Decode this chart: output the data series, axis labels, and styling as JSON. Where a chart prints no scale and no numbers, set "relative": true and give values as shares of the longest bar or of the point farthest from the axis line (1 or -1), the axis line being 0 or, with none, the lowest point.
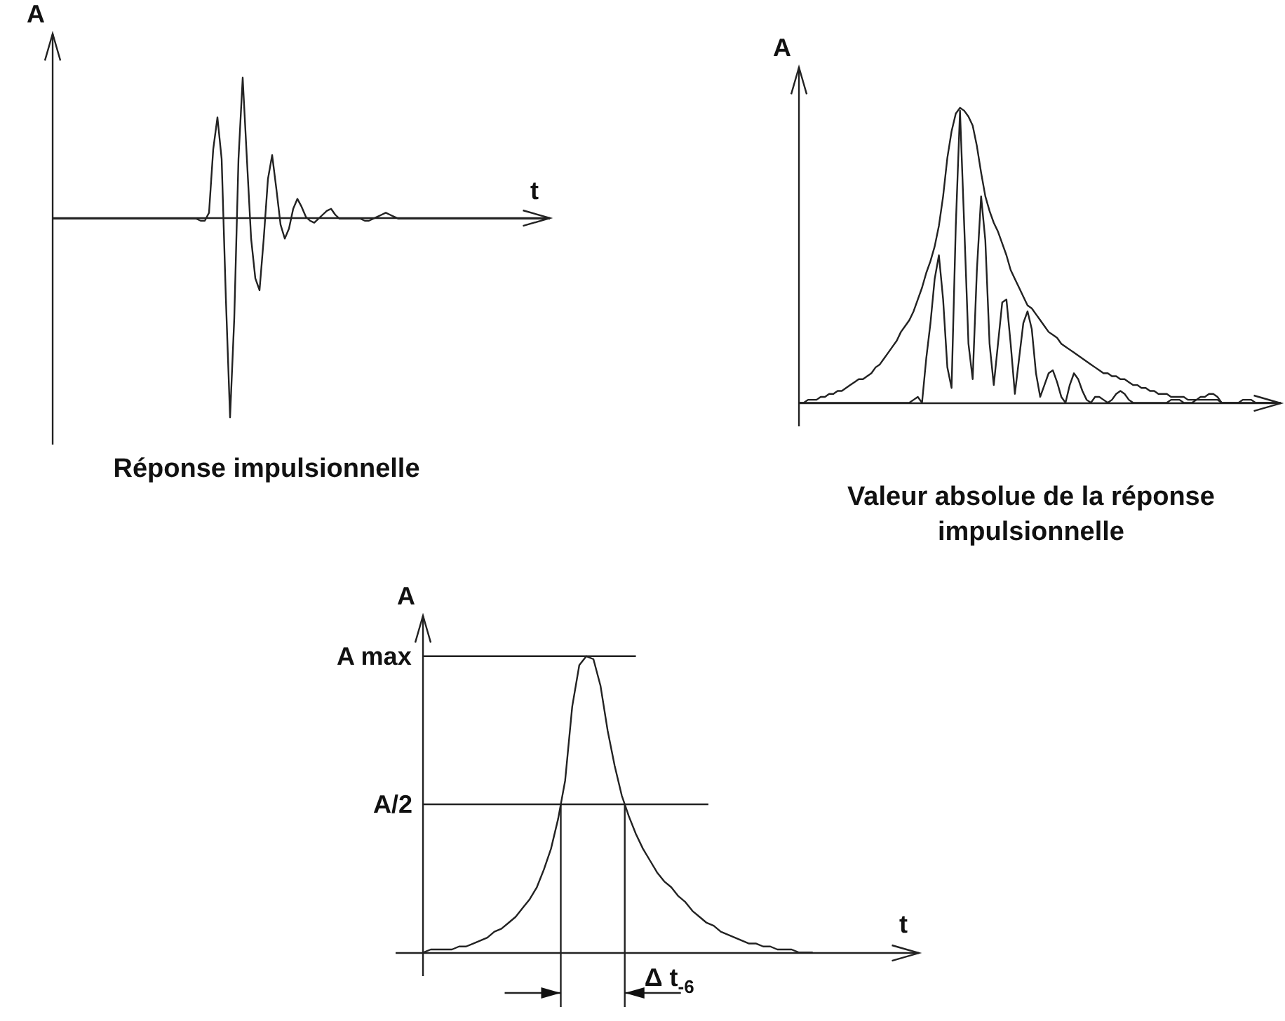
{
  "chart_data": [
    {
      "type": "line",
      "relative": true,
      "title": "Réponse impulsionnelle",
      "xlabel": "t",
      "ylabel": "A",
      "categories": [
        null,
        null,
        null,
        null,
        null,
        null,
        null,
        null,
        null,
        null,
        null,
        null,
        null,
        null,
        null,
        null,
        null,
        null,
        null,
        null,
        null,
        null,
        null,
        null,
        null,
        null,
        null,
        null,
        null,
        null,
        null,
        null,
        null,
        null,
        null,
        null,
        null,
        null,
        null,
        null,
        null,
        null,
        null,
        null,
        null,
        null,
        null,
        null,
        null,
        null,
        null,
        null,
        null,
        null,
        null,
        null,
        null,
        null,
        null,
        null,
        null,
        null,
        null,
        null,
        null,
        null,
        null,
        null,
        null,
        null,
        null,
        null,
        null,
        null,
        null,
        null,
        null,
        null,
        null,
        null,
        null,
        null,
        null,
        null,
        null,
        null,
        null,
        null,
        null,
        null,
        null,
        null,
        null,
        null,
        null,
        null,
        null,
        null,
        null,
        null,
        null,
        null,
        null,
        null,
        null,
        null,
        null,
        null,
        null,
        null,
        null,
        null,
        null,
        null,
        null,
        null,
        null,
        null,
        null
      ],
      "series": [
        {
          "color": "#222222",
          "values": [
            0,
            0,
            0,
            0,
            0,
            0,
            0,
            0,
            0,
            0,
            0,
            0,
            0,
            0,
            0,
            0,
            0,
            0,
            0,
            0,
            0,
            0,
            0,
            0,
            0,
            0,
            0,
            0,
            0,
            0,
            0,
            0,
            0,
            0,
            0,
            -0.01,
            -0.01,
            0.03,
            0.35,
            0.51,
            0.3,
            -0.4,
            -1,
            -0.5,
            0.3,
            0.71,
            0.3,
            -0.1,
            -0.3,
            -0.36,
            -0.1,
            0.2,
            0.32,
            0.15,
            -0.03,
            -0.1,
            -0.05,
            0.05,
            0.1,
            0.06,
            0.01,
            -0.01,
            -0.02,
            0,
            0.02,
            0.04,
            0.05,
            0.02,
            0,
            0,
            0,
            0,
            0,
            0,
            -0.01,
            -0.01,
            0,
            0.01,
            0.02,
            0.03,
            0.02,
            0.01,
            0,
            0,
            0,
            0,
            0,
            0,
            0,
            0,
            0,
            0,
            0,
            0,
            0,
            0,
            0,
            0,
            0,
            0,
            0,
            0,
            0,
            0,
            0,
            0,
            0,
            0,
            0,
            0,
            0,
            0,
            0,
            0,
            0,
            0,
            0,
            0,
            0
          ]
        }
      ]
    },
    {
      "type": "line",
      "relative": true,
      "title": "Valeur absolue de la réponse impulsionnelle",
      "ylabel": "A",
      "categories": [
        null,
        null,
        null,
        null,
        null,
        null,
        null,
        null,
        null,
        null,
        null,
        null,
        null,
        null,
        null,
        null,
        null,
        null,
        null,
        null,
        null,
        null,
        null,
        null,
        null,
        null,
        null,
        null,
        null,
        null,
        null,
        null,
        null,
        null,
        null,
        null,
        null,
        null,
        null,
        null,
        null,
        null,
        null,
        null,
        null,
        null,
        null,
        null,
        null,
        null,
        null,
        null,
        null,
        null,
        null,
        null,
        null,
        null,
        null,
        null,
        null,
        null,
        null,
        null,
        null,
        null,
        null,
        null,
        null,
        null,
        null,
        null,
        null,
        null,
        null,
        null,
        null,
        null,
        null,
        null,
        null,
        null,
        null,
        null,
        null,
        null,
        null,
        null,
        null,
        null,
        null,
        null,
        null,
        null,
        null,
        null,
        null,
        null,
        null,
        null,
        null,
        null,
        null,
        null,
        null,
        null,
        null,
        null,
        null,
        null,
        null,
        null,
        null,
        null,
        null
      ],
      "series": [
        {
          "color": "#222222",
          "values": [
            0,
            0,
            0.01,
            0.01,
            0.01,
            0.02,
            0.02,
            0.03,
            0.03,
            0.04,
            0.04,
            0.05,
            0.06,
            0.07,
            0.08,
            0.08,
            0.09,
            0.1,
            0.12,
            0.13,
            0.15,
            0.17,
            0.19,
            0.21,
            0.24,
            0.26,
            0.28,
            0.31,
            0.35,
            0.39,
            0.44,
            0.48,
            0.53,
            0.6,
            0.7,
            0.83,
            0.92,
            0.98,
            1,
            0.99,
            0.97,
            0.94,
            0.87,
            0.78,
            0.7,
            0.65,
            0.61,
            0.58,
            0.54,
            0.5,
            0.45,
            0.42,
            0.39,
            0.36,
            0.33,
            0.32,
            0.3,
            0.28,
            0.26,
            0.24,
            0.23,
            0.22,
            0.2,
            0.19,
            0.18,
            0.17,
            0.16,
            0.15,
            0.14,
            0.13,
            0.12,
            0.11,
            0.1,
            0.1,
            0.09,
            0.09,
            0.08,
            0.08,
            0.07,
            0.06,
            0.06,
            0.05,
            0.05,
            0.04,
            0.04,
            0.03,
            0.03,
            0.03,
            0.02,
            0.02,
            0.02,
            0.02,
            0.01,
            0.01,
            0.01,
            0.01,
            0.01,
            0.01,
            0.01,
            0.01,
            0,
            0,
            0,
            0,
            0,
            0,
            0,
            0,
            0,
            0,
            0,
            0,
            0,
            0,
            0
          ]
        },
        {
          "color": "#222222",
          "values": [
            0,
            0,
            0,
            0,
            0,
            0,
            0,
            0,
            0,
            0,
            0,
            0,
            0,
            0,
            0,
            0,
            0,
            0,
            0,
            0,
            0,
            0,
            0,
            0,
            0,
            0,
            0,
            0.01,
            0.02,
            0,
            0.15,
            0.27,
            0.42,
            0.5,
            0.35,
            0.12,
            0.05,
            0.6,
            0.99,
            0.6,
            0.2,
            0.08,
            0.45,
            0.7,
            0.55,
            0.2,
            0.06,
            0.2,
            0.34,
            0.35,
            0.2,
            0.03,
            0.15,
            0.27,
            0.31,
            0.25,
            0.1,
            0.02,
            0.06,
            0.1,
            0.11,
            0.07,
            0.02,
            0,
            0.06,
            0.1,
            0.08,
            0.04,
            0.01,
            0,
            0.02,
            0.02,
            0.01,
            0,
            0.01,
            0.03,
            0.04,
            0.03,
            0.01,
            0,
            0,
            0,
            0,
            0,
            0,
            0,
            0,
            0,
            0.01,
            0.01,
            0.01,
            0,
            0,
            0,
            0.01,
            0.02,
            0.02,
            0.03,
            0.03,
            0.02,
            0,
            0,
            0,
            0,
            0,
            0.01,
            0.01,
            0.01,
            0,
            0,
            0,
            0,
            0,
            0,
            0
          ]
        }
      ]
    },
    {
      "type": "line",
      "relative": true,
      "xlabel": "t",
      "ylabel": "A",
      "annotations": [
        "Δ t$_{-6}$"
      ],
      "ref_lines": [
        {
          "axis": "y",
          "value": 1,
          "label": "A max"
        },
        {
          "axis": "y",
          "value": 0.5,
          "label": "A/2"
        }
      ],
      "categories": [
        null,
        null,
        null,
        null,
        null,
        null,
        null,
        null,
        null,
        null,
        null,
        null,
        null,
        null,
        null,
        null,
        null,
        null,
        null,
        null,
        null,
        null,
        null,
        null,
        null,
        null,
        null,
        null,
        null,
        null,
        null,
        null,
        null,
        null,
        null,
        null,
        null,
        null,
        null,
        null,
        null,
        null,
        null,
        null,
        null,
        null,
        null,
        null,
        null,
        null,
        null,
        null,
        null,
        null,
        null,
        null,
        null,
        null,
        null,
        null,
        null,
        null,
        null,
        null,
        null,
        null,
        null,
        null,
        null,
        null,
        null
      ],
      "series": [
        {
          "color": "#222222",
          "values": [
            0,
            0.01,
            0.01,
            0.01,
            0.01,
            0.02,
            0.02,
            0.03,
            0.04,
            0.05,
            0.07,
            0.08,
            0.1,
            0.12,
            0.15,
            0.18,
            0.22,
            0.28,
            0.35,
            0.45,
            0.58,
            0.83,
            0.97,
            1,
            0.99,
            0.9,
            0.75,
            0.63,
            0.53,
            0.46,
            0.4,
            0.35,
            0.31,
            0.27,
            0.24,
            0.22,
            0.19,
            0.17,
            0.14,
            0.12,
            0.1,
            0.09,
            0.07,
            0.06,
            0.05,
            0.04,
            0.03,
            0.03,
            0.02,
            0.02,
            0.01,
            0.01,
            0.01,
            0,
            0,
            0,
            null,
            null,
            null,
            null,
            null,
            null,
            null,
            null,
            null,
            null,
            null,
            null,
            null,
            null,
            null
          ]
        }
      ]
    }
  ]
}
